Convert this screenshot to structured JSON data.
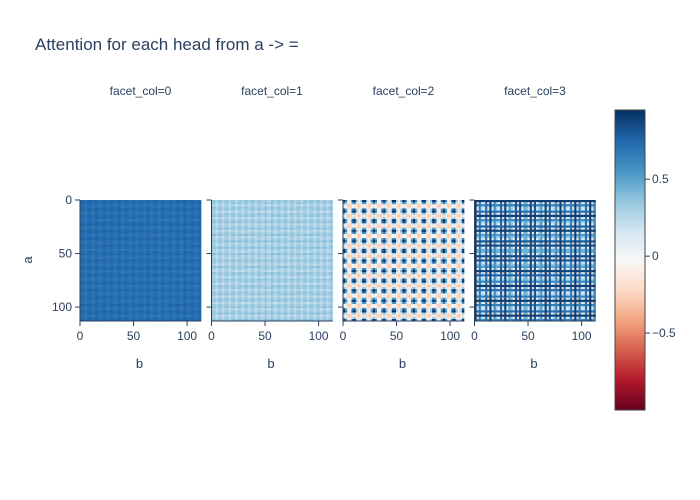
{
  "title": "Attention for each head from a -> =",
  "chart_data": {
    "type": "heatmap",
    "title": "Attention for each head from a -> =",
    "xlabel": "b",
    "ylabel": "a",
    "x_range": [
      0,
      113
    ],
    "y_range": [
      0,
      113
    ],
    "x_ticks": [
      "0",
      "50",
      "100"
    ],
    "y_ticks": [
      "0",
      "50",
      "100"
    ],
    "colorscale": "RdBu",
    "colorscale_colors": [
      "#67001f",
      "#b2182b",
      "#d6604d",
      "#f4a582",
      "#fddbc7",
      "#f7f7f7",
      "#d1e5f0",
      "#92c5de",
      "#4393c3",
      "#2166ac",
      "#053061"
    ],
    "zmin": -1,
    "zmax": 0.95,
    "colorbar_ticks": [
      "0.5",
      "0",
      "−0.5"
    ],
    "colorbar_tick_values": [
      0.5,
      0,
      -0.5
    ],
    "facets": [
      {
        "title": "facet_col=0",
        "base": 0.72,
        "amplitude": 0.06,
        "period_x": 9,
        "period_y": 9,
        "pattern": "fine-grid"
      },
      {
        "title": "facet_col=1",
        "base": 0.3,
        "amplitude": 0.12,
        "period_x": 8,
        "period_y": 8,
        "pattern": "fine-grid"
      },
      {
        "title": "facet_col=2",
        "base": 0.15,
        "amplitude": 0.7,
        "period_x": 9.4,
        "period_y": 9.4,
        "pattern": "checker"
      },
      {
        "title": "facet_col=3",
        "base": 0.3,
        "amplitude": 0.6,
        "period_x": 4.7,
        "period_y": 4.7,
        "pattern": "plaid"
      }
    ]
  }
}
